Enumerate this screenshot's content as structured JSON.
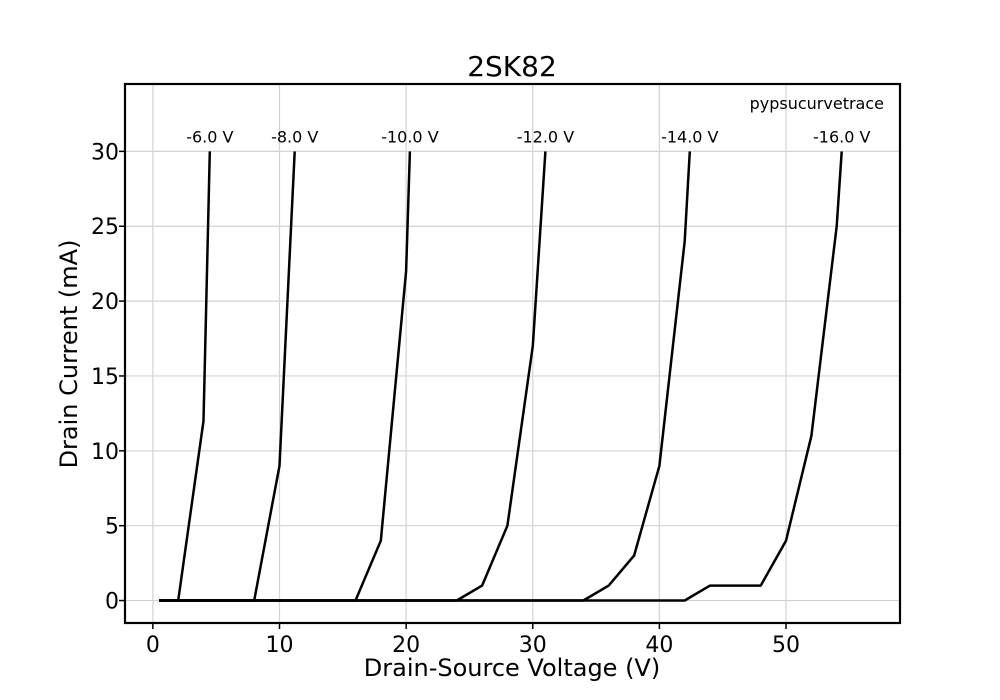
{
  "chart_data": {
    "type": "line",
    "title": "2SK82",
    "xlabel": "Drain-Source Voltage (V)",
    "ylabel": "Drain Current (mA)",
    "watermark": "pypsucurvetrace",
    "xlim": [
      -2.2,
      59
    ],
    "ylim": [
      -1.5,
      34.5
    ],
    "xticks": [
      0,
      10,
      20,
      30,
      40,
      50
    ],
    "yticks": [
      0,
      5,
      10,
      15,
      20,
      25,
      30
    ],
    "grid": true,
    "line_color": "#000000",
    "series": [
      {
        "name": "-6.0 V",
        "x": [
          0.5,
          2.0,
          4.0,
          4.5
        ],
        "y": [
          0,
          0,
          12,
          30
        ]
      },
      {
        "name": "-8.0 V",
        "x": [
          0.5,
          8.0,
          10.0,
          11.2
        ],
        "y": [
          0,
          0,
          9,
          30
        ]
      },
      {
        "name": "-10.0 V",
        "x": [
          0.5,
          16.0,
          18.0,
          20.0,
          20.3
        ],
        "y": [
          0,
          0,
          4,
          22,
          30
        ]
      },
      {
        "name": "-12.0 V",
        "x": [
          0.5,
          24.0,
          26.0,
          28.0,
          30.0,
          31.0
        ],
        "y": [
          0,
          0,
          1,
          5,
          17,
          30
        ]
      },
      {
        "name": "-14.0 V",
        "x": [
          0.5,
          34.0,
          36.0,
          38.0,
          40.0,
          42.0,
          42.4
        ],
        "y": [
          0,
          0,
          1,
          3,
          9,
          24,
          30
        ]
      },
      {
        "name": "-16.0 V",
        "x": [
          0.5,
          42.0,
          44.0,
          46.0,
          48.0,
          50.0,
          52.0,
          54.0,
          54.4
        ],
        "y": [
          0,
          0,
          1,
          1,
          1,
          4,
          11,
          25,
          30
        ]
      }
    ]
  }
}
